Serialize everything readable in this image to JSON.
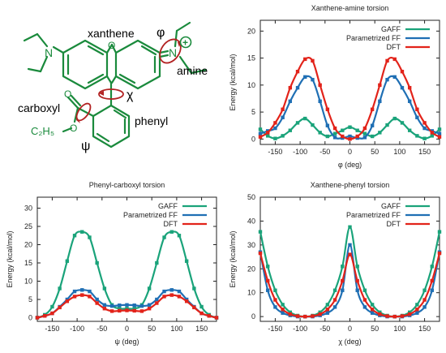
{
  "molecule": {
    "labels": {
      "xanthene": "xanthene",
      "amine": "amine",
      "carboxyl": "carboxyl",
      "phenyl": "phenyl",
      "phi": "φ",
      "chi": "χ",
      "psi": "ψ",
      "n_left": "N",
      "n_right": "N",
      "oxygen_ring": "O",
      "oxygen_carbonyl": "O",
      "oxygen_ester": "O",
      "ethyl": "C₂H₅",
      "plus": "+"
    },
    "colors": {
      "structure": "#1a8a3c",
      "torsion_arrow": "#b22222"
    }
  },
  "colors": {
    "gaff": "#1aa37a",
    "param": "#1f6fb4",
    "dft": "#e2231a"
  },
  "chart_data": [
    {
      "type": "line",
      "title": "Xanthene-amine torsion",
      "xlabel": "φ (deg)",
      "ylabel": "Energy (kcal/mol)",
      "xlim": [
        -180,
        180
      ],
      "ylim": [
        -1,
        22
      ],
      "xticks": [
        -150,
        -100,
        -50,
        0,
        50,
        100,
        150
      ],
      "yticks": [
        0,
        5,
        10,
        15,
        20
      ],
      "grid": false,
      "legend": "top-right",
      "x": [
        -180,
        -165,
        -150,
        -135,
        -120,
        -105,
        -90,
        -75,
        -60,
        -45,
        -30,
        -15,
        0,
        15,
        30,
        45,
        60,
        75,
        90,
        105,
        120,
        135,
        150,
        165,
        180
      ],
      "series": [
        {
          "name": "GAFF",
          "color": "#1aa37a",
          "values": [
            1.8,
            0.6,
            0.1,
            0.6,
            1.6,
            3.0,
            3.8,
            2.6,
            1.2,
            0.5,
            1.0,
            1.6,
            2.2,
            1.6,
            1.0,
            0.5,
            1.2,
            2.6,
            3.8,
            3.0,
            1.6,
            0.6,
            0.1,
            0.6,
            1.8
          ]
        },
        {
          "name": "Parametrized FF",
          "color": "#1f6fb4",
          "values": [
            1.0,
            1.5,
            2.0,
            4.0,
            7.0,
            9.5,
            11.5,
            11.0,
            7.0,
            2.5,
            0.3,
            0.2,
            0.5,
            0.2,
            0.3,
            2.5,
            7.0,
            11.0,
            11.5,
            9.5,
            7.0,
            4.0,
            2.0,
            1.5,
            1.0
          ]
        },
        {
          "name": "DFT",
          "color": "#e2231a",
          "values": [
            0.4,
            1.2,
            3.0,
            5.5,
            9.5,
            12.5,
            14.8,
            14.5,
            10.0,
            5.5,
            2.0,
            0.5,
            0.0,
            0.5,
            2.0,
            5.5,
            10.0,
            14.5,
            14.8,
            12.5,
            9.5,
            5.5,
            3.0,
            1.2,
            0.4
          ]
        }
      ]
    },
    {
      "type": "line",
      "title": "Phenyl-carboxyl torsion",
      "xlabel": "ψ (deg)",
      "ylabel": "Energy (kcal/mol)",
      "xlim": [
        -180,
        180
      ],
      "ylim": [
        -1,
        33
      ],
      "xticks": [
        -150,
        -100,
        -50,
        0,
        50,
        100,
        150
      ],
      "yticks": [
        0,
        5,
        10,
        15,
        20,
        25,
        30
      ],
      "grid": false,
      "legend": "top-right",
      "x": [
        -180,
        -165,
        -150,
        -135,
        -120,
        -105,
        -90,
        -75,
        -60,
        -45,
        -30,
        -15,
        0,
        15,
        30,
        45,
        60,
        75,
        90,
        105,
        120,
        135,
        150,
        165,
        180
      ],
      "series": [
        {
          "name": "GAFF",
          "color": "#1aa37a",
          "values": [
            0.0,
            0.8,
            3.0,
            8.0,
            15.5,
            22.5,
            23.5,
            22.0,
            15.0,
            8.0,
            3.5,
            2.5,
            2.5,
            2.5,
            3.5,
            8.0,
            15.0,
            22.0,
            23.5,
            22.5,
            15.5,
            8.0,
            3.0,
            0.8,
            0.0
          ]
        },
        {
          "name": "Parametrized FF",
          "color": "#1f6fb4",
          "values": [
            0.0,
            0.5,
            1.2,
            3.0,
            5.0,
            7.2,
            7.6,
            7.2,
            5.0,
            3.5,
            3.2,
            3.4,
            3.5,
            3.4,
            3.2,
            3.5,
            5.0,
            7.2,
            7.6,
            7.2,
            5.0,
            3.0,
            1.2,
            0.5,
            0.0
          ]
        },
        {
          "name": "DFT",
          "color": "#e2231a",
          "values": [
            0.0,
            0.5,
            1.2,
            2.8,
            4.5,
            5.8,
            6.2,
            5.8,
            4.0,
            2.5,
            1.8,
            1.9,
            2.0,
            1.9,
            1.8,
            2.5,
            4.0,
            5.8,
            6.2,
            5.8,
            4.5,
            2.8,
            1.2,
            0.5,
            0.0
          ]
        }
      ]
    },
    {
      "type": "line",
      "title": "Xanthene-phenyl torsion",
      "xlabel": "χ (deg)",
      "ylabel": "Energy (kcal/mol)",
      "xlim": [
        -180,
        180
      ],
      "ylim": [
        -2,
        50
      ],
      "xticks": [
        -150,
        -100,
        -50,
        0,
        50,
        100,
        150
      ],
      "yticks": [
        0,
        10,
        20,
        30,
        40,
        50
      ],
      "grid": false,
      "legend": "top-right",
      "x": [
        -180,
        -165,
        -150,
        -135,
        -120,
        -105,
        -90,
        -75,
        -60,
        -45,
        -30,
        -15,
        0,
        15,
        30,
        45,
        60,
        75,
        90,
        105,
        120,
        135,
        150,
        165,
        180
      ],
      "series": [
        {
          "name": "GAFF",
          "color": "#1aa37a",
          "values": [
            35.5,
            21.0,
            11.0,
            5.0,
            1.8,
            0.4,
            0.0,
            0.4,
            1.8,
            5.0,
            11.0,
            21.0,
            37.5,
            21.0,
            11.0,
            5.0,
            1.8,
            0.4,
            0.0,
            0.4,
            1.8,
            5.0,
            11.0,
            21.0,
            35.5
          ]
        },
        {
          "name": "Parametrized FF",
          "color": "#1f6fb4",
          "values": [
            27.0,
            11.0,
            4.0,
            1.5,
            0.5,
            0.0,
            0.0,
            0.0,
            0.5,
            1.5,
            4.0,
            11.0,
            30.0,
            11.0,
            4.0,
            1.5,
            0.5,
            0.0,
            0.0,
            0.0,
            0.5,
            1.5,
            4.0,
            11.0,
            27.0
          ]
        },
        {
          "name": "DFT",
          "color": "#e2231a",
          "values": [
            26.5,
            15.0,
            7.0,
            3.0,
            1.0,
            0.2,
            0.0,
            0.2,
            1.0,
            3.0,
            7.0,
            15.0,
            26.0,
            15.0,
            7.0,
            3.0,
            1.0,
            0.2,
            0.0,
            0.2,
            1.0,
            3.0,
            7.0,
            15.0,
            26.5
          ]
        }
      ]
    }
  ]
}
